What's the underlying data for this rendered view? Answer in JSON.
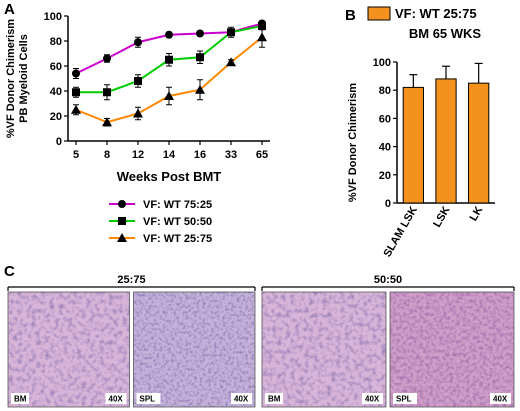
{
  "chart_data": [
    {
      "panel": "A",
      "type": "line",
      "ylabel": "%VF Donor Chimerism\nPB Myeloid Cells",
      "xlabel": "Weeks Post BMT",
      "categories": [
        "5",
        "8",
        "12",
        "14",
        "16",
        "33",
        "65"
      ],
      "ylim": [
        0,
        100
      ],
      "yticks": [
        0,
        20,
        40,
        60,
        80,
        100
      ],
      "series": [
        {
          "name": "VF: WT 75:25",
          "color": "#cc00cc",
          "marker": "circle",
          "values": [
            54,
            66,
            79,
            85,
            86,
            87,
            94
          ],
          "errors": [
            4,
            3,
            4,
            2,
            2,
            2,
            2
          ]
        },
        {
          "name": "VF: WT 50:50",
          "color": "#00cc00",
          "marker": "square",
          "values": [
            39,
            39,
            48,
            65,
            67,
            87,
            92
          ],
          "errors": [
            4,
            6,
            5,
            5,
            5,
            4,
            3
          ]
        },
        {
          "name": "VF: WT 25:75",
          "color": "#ff8800",
          "marker": "triangle",
          "values": [
            25,
            15,
            22,
            36,
            41,
            63,
            83
          ],
          "errors": [
            4,
            3,
            5,
            7,
            8,
            2,
            8
          ]
        }
      ],
      "legend": [
        "VF: WT 75:25",
        "VF: WT 50:50",
        "VF: WT 25:75"
      ]
    },
    {
      "panel": "B",
      "type": "bar",
      "title": "VF: WT 25:75",
      "subtitle": "BM 65 WKS",
      "ylabel": "%VF Donor Chimerism",
      "categories": [
        "SLAM LSK",
        "LSK",
        "LK"
      ],
      "values": [
        82,
        88,
        85
      ],
      "errors": [
        9,
        9,
        14
      ],
      "ylim": [
        0,
        100
      ],
      "yticks": [
        0,
        20,
        40,
        60,
        80,
        100
      ],
      "bar_color": "#f5921e"
    }
  ],
  "panel_c": {
    "letter": "C",
    "groups": [
      {
        "label": "25:75",
        "images": [
          {
            "tag_left": "BM",
            "tag_right": "40X",
            "tint": "bm"
          },
          {
            "tag_left": "SPL",
            "tag_right": "40X",
            "tint": "spl"
          }
        ]
      },
      {
        "label": "50:50",
        "images": [
          {
            "tag_left": "BM",
            "tag_right": "40X",
            "tint": "bm"
          },
          {
            "tag_left": "SPL",
            "tag_right": "40X",
            "tint": "spl2"
          }
        ]
      }
    ]
  },
  "labels": {
    "a": "A",
    "b": "B"
  }
}
